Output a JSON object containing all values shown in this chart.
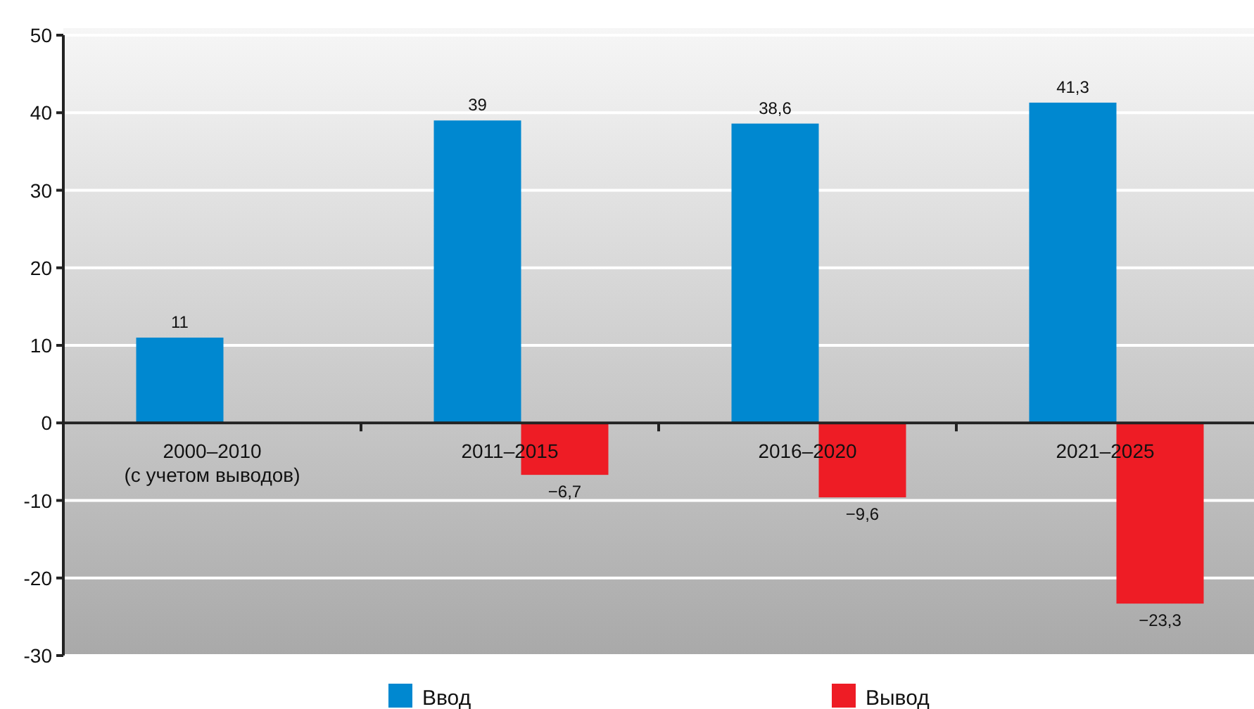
{
  "chart_data": {
    "type": "bar",
    "categories": [
      "2000–2010\n(с учетом выводов)",
      "2011–2015",
      "2016–2020",
      "2021–2025"
    ],
    "series": [
      {
        "name": "Ввод",
        "color": "#0088d0",
        "values": [
          11,
          39,
          38.6,
          41.3
        ],
        "value_labels": [
          "11",
          "39",
          "38,6",
          "41,3"
        ]
      },
      {
        "name": "Вывод",
        "color": "#ee1c25",
        "values": [
          null,
          -6.7,
          -9.6,
          -23.3
        ],
        "value_labels": [
          null,
          "−6,7",
          "−9,6",
          "−23,3"
        ]
      }
    ],
    "ylim": [
      -30,
      50
    ],
    "yticks": [
      -30,
      -20,
      -10,
      0,
      10,
      20,
      30,
      40,
      50
    ],
    "grid": "y",
    "legend": "bottom"
  }
}
